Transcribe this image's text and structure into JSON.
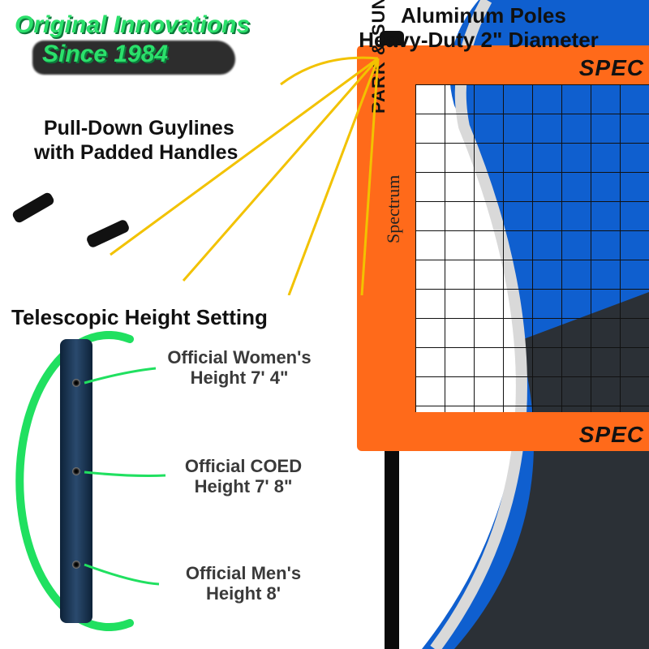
{
  "brand": {
    "line1": "Original Innovations",
    "line2": "Since 1984"
  },
  "poles": {
    "line1": "Aluminum Poles",
    "line2": "Heavy-Duty 2\"  Diameter"
  },
  "guylines": {
    "line1": "Pull-Down Guylines",
    "line2": "with Padded Handles"
  },
  "telescopic": {
    "title": "Telescopic Height Setting"
  },
  "heights": {
    "women": "Official Women's\nHeight 7' 4\"",
    "coed": "Official COED\nHeight 7' 8\"",
    "men": "Official Men's\nHeight 8'"
  },
  "net": {
    "top_text": "SPEC",
    "bottom_text": "SPEC",
    "side_brand": "PARK & SUN",
    "side_script": "Spectrum"
  },
  "colors": {
    "accent_green": "#2be06b",
    "net_orange": "#ff6a1a",
    "bg_blue": "#0f5fcf",
    "bg_dark": "#2d2d2d",
    "guyline_yellow": "#f2c200",
    "pole_navy": "#18344e"
  },
  "hole_offsets_pct": [
    14,
    45,
    78
  ]
}
